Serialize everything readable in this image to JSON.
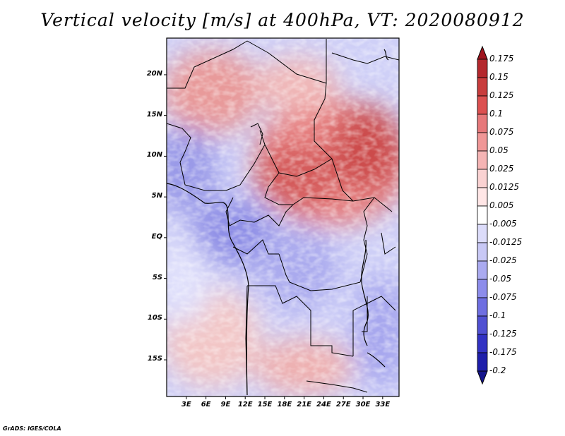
{
  "title": "Vertical velocity [m/s] at 400hPa, VT: 2020080912",
  "credit": "GrADS: IGES/COLA",
  "map": {
    "lon_range": [
      0,
      35.5
    ],
    "lat_range": [
      -19.5,
      24.5
    ],
    "lat_ticks": [
      {
        "value": 20,
        "label": "20N"
      },
      {
        "value": 15,
        "label": "15N"
      },
      {
        "value": 10,
        "label": "10N"
      },
      {
        "value": 5,
        "label": "5N"
      },
      {
        "value": 0,
        "label": "EQ"
      },
      {
        "value": -5,
        "label": "5S"
      },
      {
        "value": -10,
        "label": "10S"
      },
      {
        "value": -15,
        "label": "15S"
      }
    ],
    "lon_ticks": [
      {
        "value": 3,
        "label": "3E"
      },
      {
        "value": 6,
        "label": "6E"
      },
      {
        "value": 9,
        "label": "9E"
      },
      {
        "value": 12,
        "label": "12E"
      },
      {
        "value": 15,
        "label": "15E"
      },
      {
        "value": 18,
        "label": "18E"
      },
      {
        "value": 21,
        "label": "21E"
      },
      {
        "value": 24,
        "label": "24E"
      },
      {
        "value": 27,
        "label": "27E"
      },
      {
        "value": 30,
        "label": "30E"
      },
      {
        "value": 33,
        "label": "33E"
      }
    ]
  },
  "colorbar": {
    "labels": [
      "0.175",
      "0.15",
      "0.125",
      "0.1",
      "0.075",
      "0.05",
      "0.025",
      "0.0125",
      "0.005",
      "-0.005",
      "-0.0125",
      "-0.025",
      "-0.05",
      "-0.075",
      "-0.1",
      "-0.125",
      "-0.175",
      "-0.2"
    ],
    "colors": [
      "#a0141e",
      "#b4282d",
      "#c83c3c",
      "#dc5050",
      "#e6787a",
      "#f09696",
      "#f5b4b4",
      "#fad2d2",
      "#ffe6e6",
      "#ffffff",
      "#dcdcfa",
      "#c8c8f5",
      "#aaaaf0",
      "#8c8ceb",
      "#6e6ee1",
      "#5050d2",
      "#3232c3",
      "#1e1eaa",
      "#14148c"
    ]
  }
}
